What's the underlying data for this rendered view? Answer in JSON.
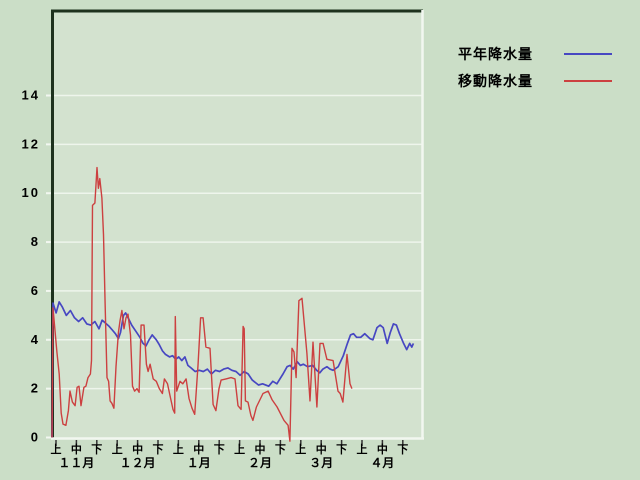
{
  "colors": {
    "background": "#cbdec7",
    "plot_background": "#d3e2cf",
    "grid": "#eef5ec",
    "frame_dark": "#1e321e",
    "frame_light": "#f2f7f0",
    "axis_tick": "#333333",
    "text": "#000000",
    "series_normal": "#4747c2",
    "series_moving": "#cc4040"
  },
  "chart_data": {
    "type": "line",
    "title": "",
    "xlabel": "",
    "ylabel": "",
    "ylim": [
      0,
      17.5
    ],
    "yticks": [
      0,
      2,
      4,
      6,
      8,
      10,
      12,
      14
    ],
    "grid": "horizontal white lines at each labeled y value",
    "legend_position": "top-right outside plot",
    "x_unit": "days from Nov 1 (0-181)",
    "months": [
      "１１月",
      "１２月",
      "１月",
      "２月",
      "３月",
      "４月"
    ],
    "periods": [
      "上",
      "中",
      "下"
    ],
    "series": [
      {
        "name": "平年降水量",
        "color": "#4747c2",
        "points": [
          [
            0,
            0
          ],
          [
            0.5,
            5.5
          ],
          [
            2,
            5.1
          ],
          [
            3.5,
            5.55
          ],
          [
            5,
            5.35
          ],
          [
            7,
            5.0
          ],
          [
            9,
            5.2
          ],
          [
            11,
            4.9
          ],
          [
            13,
            4.75
          ],
          [
            15,
            4.9
          ],
          [
            17,
            4.65
          ],
          [
            19,
            4.6
          ],
          [
            21,
            4.75
          ],
          [
            23,
            4.45
          ],
          [
            24.5,
            4.8
          ],
          [
            26,
            4.7
          ],
          [
            28,
            4.55
          ],
          [
            29.5,
            4.4
          ],
          [
            31,
            4.25
          ],
          [
            32.5,
            4.05
          ],
          [
            33.5,
            4.3
          ],
          [
            35,
            5.0
          ],
          [
            36,
            5.1
          ],
          [
            37.5,
            4.85
          ],
          [
            39,
            4.6
          ],
          [
            41,
            4.35
          ],
          [
            43,
            4.1
          ],
          [
            44.5,
            3.85
          ],
          [
            46,
            3.75
          ],
          [
            47.5,
            4.0
          ],
          [
            49,
            4.2
          ],
          [
            51,
            4.0
          ],
          [
            52.5,
            3.8
          ],
          [
            54,
            3.55
          ],
          [
            55.5,
            3.4
          ],
          [
            57.5,
            3.3
          ],
          [
            59,
            3.35
          ],
          [
            60.5,
            3.2
          ],
          [
            62,
            3.3
          ],
          [
            63.5,
            3.15
          ],
          [
            65,
            3.3
          ],
          [
            66.5,
            2.95
          ],
          [
            68,
            2.85
          ],
          [
            70,
            2.7
          ],
          [
            72,
            2.75
          ],
          [
            74,
            2.7
          ],
          [
            76,
            2.8
          ],
          [
            78,
            2.6
          ],
          [
            80,
            2.75
          ],
          [
            82,
            2.7
          ],
          [
            84,
            2.8
          ],
          [
            86,
            2.85
          ],
          [
            88,
            2.75
          ],
          [
            90,
            2.7
          ],
          [
            92,
            2.55
          ],
          [
            94,
            2.7
          ],
          [
            96,
            2.6
          ],
          [
            98,
            2.35
          ],
          [
            101,
            2.15
          ],
          [
            103,
            2.2
          ],
          [
            106,
            2.1
          ],
          [
            108,
            2.3
          ],
          [
            110,
            2.2
          ],
          [
            111.5,
            2.4
          ],
          [
            113,
            2.6
          ],
          [
            115,
            2.9
          ],
          [
            116.5,
            2.95
          ],
          [
            118,
            2.8
          ],
          [
            120,
            3.1
          ],
          [
            121.5,
            2.95
          ],
          [
            123,
            3.0
          ],
          [
            125,
            2.9
          ],
          [
            127.5,
            2.95
          ],
          [
            129.5,
            2.75
          ],
          [
            131,
            2.65
          ],
          [
            132.5,
            2.8
          ],
          [
            134.5,
            2.9
          ],
          [
            136,
            2.8
          ],
          [
            137.5,
            2.75
          ],
          [
            140,
            2.9
          ],
          [
            142.5,
            3.35
          ],
          [
            144.5,
            3.85
          ],
          [
            146,
            4.2
          ],
          [
            147.5,
            4.25
          ],
          [
            149,
            4.1
          ],
          [
            151,
            4.1
          ],
          [
            153,
            4.25
          ],
          [
            155.5,
            4.05
          ],
          [
            157,
            4.0
          ],
          [
            159,
            4.5
          ],
          [
            160.5,
            4.6
          ],
          [
            162,
            4.5
          ],
          [
            164,
            3.85
          ],
          [
            165.5,
            4.3
          ],
          [
            167,
            4.65
          ],
          [
            168.5,
            4.6
          ],
          [
            170,
            4.25
          ],
          [
            172,
            3.85
          ],
          [
            173.5,
            3.6
          ],
          [
            175,
            3.85
          ],
          [
            176,
            3.7
          ],
          [
            176.8,
            3.85
          ]
        ]
      },
      {
        "name": "移動降水量",
        "color": "#cc4040",
        "points": [
          [
            0,
            0
          ],
          [
            0.5,
            5.3
          ],
          [
            2.4,
            3.5
          ],
          [
            3.5,
            2.6
          ],
          [
            4.5,
            1.0
          ],
          [
            5.4,
            0.55
          ],
          [
            6.8,
            0.5
          ],
          [
            8,
            1.1
          ],
          [
            8.8,
            1.9
          ],
          [
            10,
            1.45
          ],
          [
            11.3,
            1.3
          ],
          [
            12.3,
            2.05
          ],
          [
            13.2,
            2.1
          ],
          [
            14.2,
            1.3
          ],
          [
            15.6,
            2.05
          ],
          [
            16.6,
            2.1
          ],
          [
            17.6,
            2.45
          ],
          [
            18.8,
            2.6
          ],
          [
            19.3,
            3.15
          ],
          [
            19.8,
            9.5
          ],
          [
            21,
            9.6
          ],
          [
            22,
            11.05
          ],
          [
            22.7,
            10.2
          ],
          [
            23.4,
            10.6
          ],
          [
            24.4,
            9.8
          ],
          [
            25.2,
            8.3
          ],
          [
            26,
            5.5
          ],
          [
            26.9,
            2.45
          ],
          [
            27.7,
            2.3
          ],
          [
            28.4,
            1.5
          ],
          [
            29.3,
            1.4
          ],
          [
            30.3,
            1.2
          ],
          [
            31.3,
            2.9
          ],
          [
            32.5,
            4.3
          ],
          [
            33.3,
            4.8
          ],
          [
            34.2,
            5.2
          ],
          [
            35.2,
            4.45
          ],
          [
            36.2,
            4.9
          ],
          [
            37.2,
            5.05
          ],
          [
            38.4,
            4.2
          ],
          [
            39.4,
            2.1
          ],
          [
            40.4,
            1.9
          ],
          [
            41.6,
            2.0
          ],
          [
            42.6,
            1.85
          ],
          [
            43.6,
            4.6
          ],
          [
            45,
            4.6
          ],
          [
            46.2,
            3.0
          ],
          [
            47,
            2.7
          ],
          [
            48,
            3.0
          ],
          [
            49.5,
            2.4
          ],
          [
            51,
            2.3
          ],
          [
            52.5,
            2.0
          ],
          [
            54,
            1.8
          ],
          [
            55,
            2.4
          ],
          [
            56.5,
            2.2
          ],
          [
            58,
            1.6
          ],
          [
            59.2,
            1.15
          ],
          [
            60,
            1.0
          ],
          [
            60.3,
            4.95
          ],
          [
            61,
            1.9
          ],
          [
            62.6,
            2.3
          ],
          [
            64,
            2.2
          ],
          [
            65.6,
            2.4
          ],
          [
            67,
            1.6
          ],
          [
            68.5,
            1.2
          ],
          [
            69.8,
            0.95
          ],
          [
            71.4,
            2.95
          ],
          [
            72.7,
            4.9
          ],
          [
            73.9,
            4.9
          ],
          [
            75.3,
            3.7
          ],
          [
            77.3,
            3.65
          ],
          [
            78.8,
            1.35
          ],
          [
            80.2,
            1.1
          ],
          [
            81.7,
            2.0
          ],
          [
            82.7,
            2.35
          ],
          [
            85.1,
            2.4
          ],
          [
            87.6,
            2.45
          ],
          [
            89.5,
            2.4
          ],
          [
            91,
            1.3
          ],
          [
            92.5,
            1.15
          ],
          [
            93.5,
            4.55
          ],
          [
            94,
            4.45
          ],
          [
            94.6,
            1.5
          ],
          [
            95.9,
            1.45
          ],
          [
            97.3,
            0.9
          ],
          [
            98.3,
            0.7
          ],
          [
            100,
            1.25
          ],
          [
            103.2,
            1.8
          ],
          [
            105.7,
            1.9
          ],
          [
            107.6,
            1.55
          ],
          [
            110.1,
            1.25
          ],
          [
            113.5,
            0.7
          ],
          [
            115.5,
            0.5
          ],
          [
            116.4,
            -0.15
          ],
          [
            117.4,
            3.65
          ],
          [
            118.4,
            3.5
          ],
          [
            119.4,
            2.45
          ],
          [
            120.8,
            5.6
          ],
          [
            122.3,
            5.7
          ],
          [
            124.7,
            3.45
          ],
          [
            126.2,
            1.5
          ],
          [
            127.7,
            3.9
          ],
          [
            129.6,
            1.25
          ],
          [
            131.1,
            3.85
          ],
          [
            132.6,
            3.85
          ],
          [
            134.5,
            3.2
          ],
          [
            137.5,
            3.15
          ],
          [
            139.9,
            1.9
          ],
          [
            141,
            1.8
          ],
          [
            142.3,
            1.45
          ],
          [
            144.3,
            3.4
          ],
          [
            145.8,
            2.2
          ],
          [
            146.7,
            2.0
          ]
        ]
      }
    ]
  }
}
